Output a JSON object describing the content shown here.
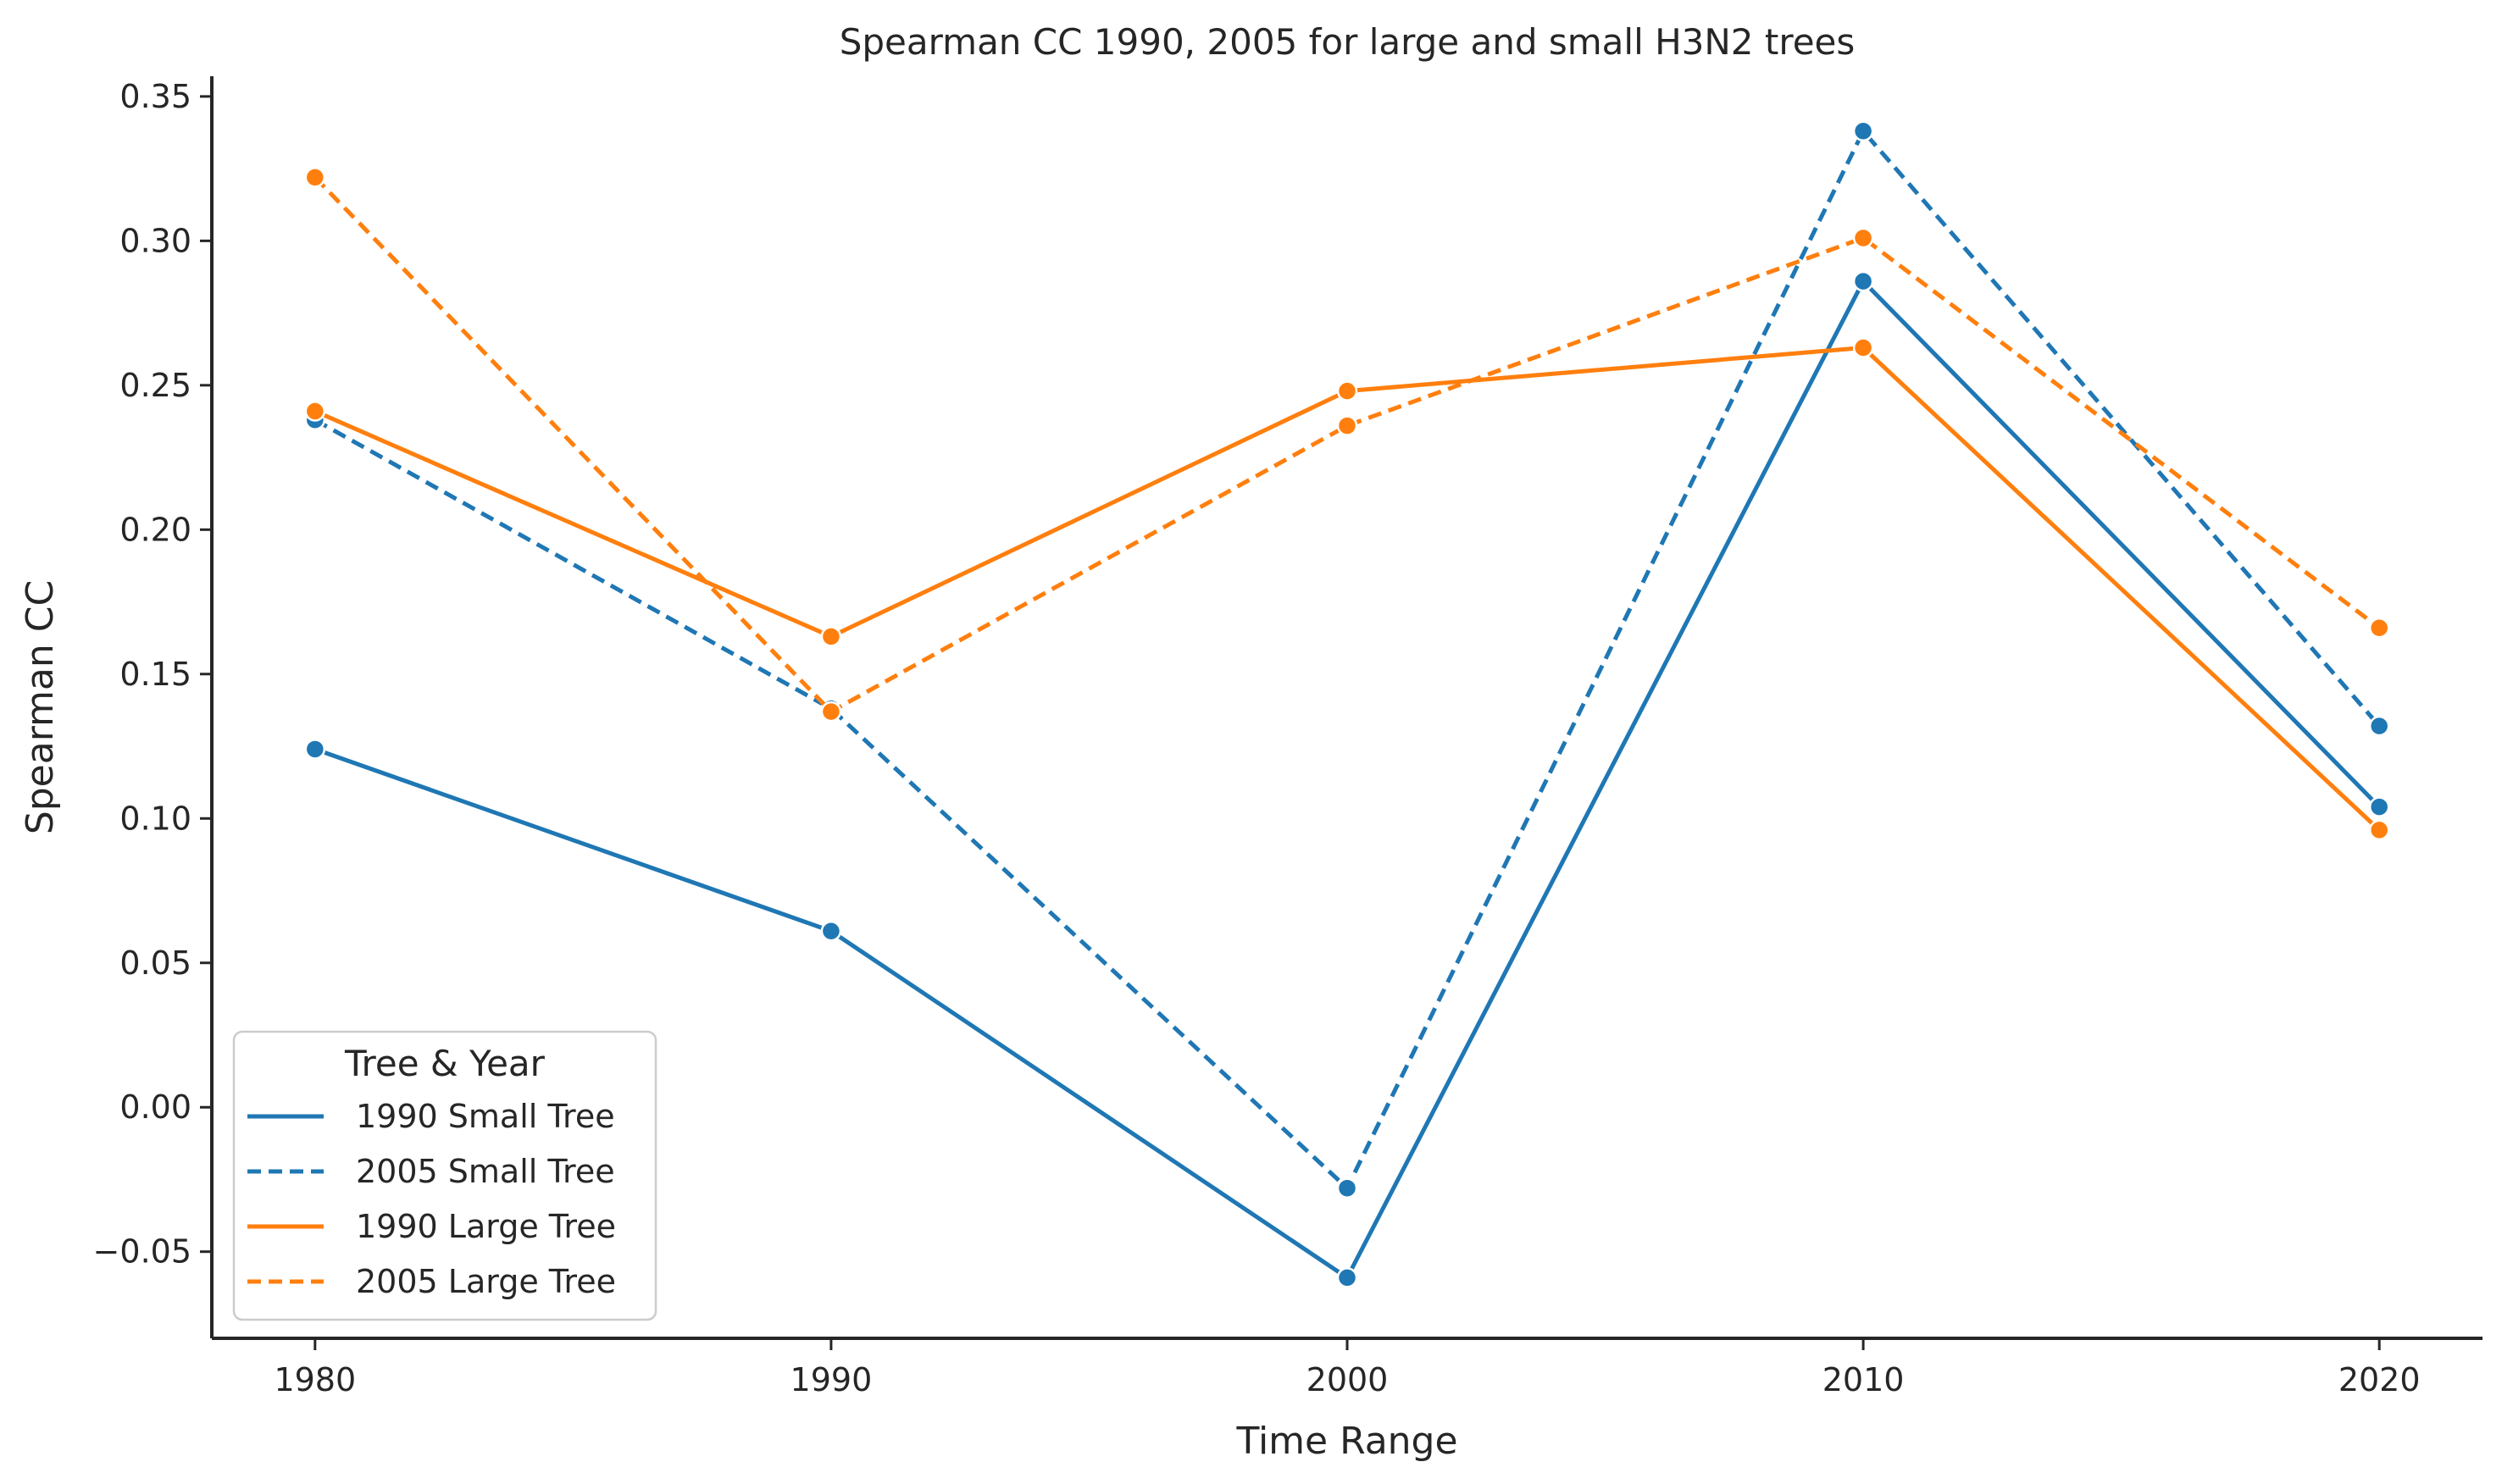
{
  "chart_data": {
    "type": "line",
    "title": "Spearman CC 1990, 2005 for large and small H3N2 trees",
    "xlabel": "Time Range",
    "ylabel": "Spearman CC",
    "x": [
      1980,
      1990,
      2000,
      2010,
      2020
    ],
    "xticks": [
      "1980",
      "1990",
      "2000",
      "2010",
      "2020"
    ],
    "xlim": [
      1978,
      2022
    ],
    "ylim": [
      -0.08,
      0.357
    ],
    "yticks": [
      "−0.05",
      "0.00",
      "0.05",
      "0.10",
      "0.15",
      "0.20",
      "0.25",
      "0.30",
      "0.35"
    ],
    "ytick_values": [
      -0.05,
      0.0,
      0.05,
      0.1,
      0.15,
      0.2,
      0.25,
      0.3,
      0.35
    ],
    "grid": false,
    "legend": {
      "title": "Tree & Year",
      "placement": "lower-left"
    },
    "series": [
      {
        "name": "1990 Small Tree",
        "color": "#1f77b4",
        "dash": "solid",
        "values": [
          0.124,
          0.061,
          -0.059,
          0.286,
          0.104
        ]
      },
      {
        "name": "2005 Small Tree",
        "color": "#1f77b4",
        "dash": "dashed",
        "values": [
          0.238,
          0.138,
          -0.028,
          0.338,
          0.132
        ]
      },
      {
        "name": "1990 Large Tree",
        "color": "#ff7f0e",
        "dash": "solid",
        "values": [
          0.241,
          0.163,
          0.248,
          0.263,
          0.096
        ]
      },
      {
        "name": "2005 Large Tree",
        "color": "#ff7f0e",
        "dash": "dashed",
        "values": [
          0.322,
          0.137,
          0.236,
          0.301,
          0.166
        ]
      }
    ]
  }
}
